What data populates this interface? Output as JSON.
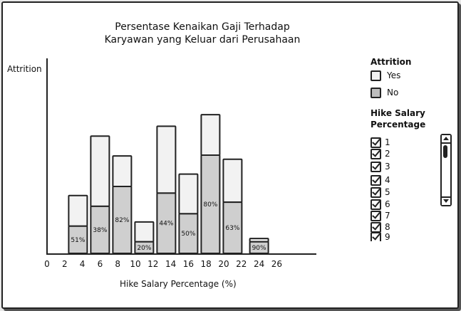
{
  "chart_data": {
    "type": "bar",
    "stacked": true,
    "title": [
      "Persentase Kenaikan Gaji Terhadap",
      "Karyawan yang Keluar dari Perusahaan"
    ],
    "xlabel": "Hike Salary Percentage (%)",
    "ylabel": "Attrition",
    "x_ticks": [
      "0",
      "2",
      "4",
      "6",
      "8",
      "10",
      "12",
      "14",
      "16",
      "18",
      "20",
      "22",
      "24",
      "26"
    ],
    "xlim": [
      0,
      27
    ],
    "ylim": [
      0,
      100
    ],
    "bars": [
      {
        "x": 3.5,
        "total": 35,
        "no": 16.5,
        "label": "51%"
      },
      {
        "x": 6.0,
        "total": 71,
        "no": 28.5,
        "label": "38%"
      },
      {
        "x": 8.5,
        "total": 59,
        "no": 40.5,
        "label": "82%"
      },
      {
        "x": 11.0,
        "total": 19,
        "no": 7,
        "label": "20%"
      },
      {
        "x": 13.5,
        "total": 77,
        "no": 36.5,
        "label": "44%"
      },
      {
        "x": 16.0,
        "total": 48,
        "no": 24,
        "label": "50%"
      },
      {
        "x": 18.5,
        "total": 84,
        "no": 59.5,
        "label": "80%"
      },
      {
        "x": 21.0,
        "total": 57,
        "no": 31,
        "label": "63%"
      },
      {
        "x": 24.0,
        "total": 9,
        "no": 7,
        "label": "90%"
      }
    ],
    "series": [
      {
        "name": "Yes",
        "color": "#f2f2f2"
      },
      {
        "name": "No",
        "color": "#cfcfcf"
      }
    ],
    "legend_position": "right"
  },
  "legend": {
    "attrition_title": "Attrition",
    "items": [
      {
        "label": "Yes",
        "color": "#f2f2f2"
      },
      {
        "label": "No",
        "color": "#bdbdbd"
      }
    ],
    "filter_title": [
      "Hike Salary",
      "Percentage"
    ],
    "filter_items": [
      "1",
      "2",
      "3",
      "4",
      "5",
      "6",
      "7",
      "8",
      "9"
    ]
  }
}
